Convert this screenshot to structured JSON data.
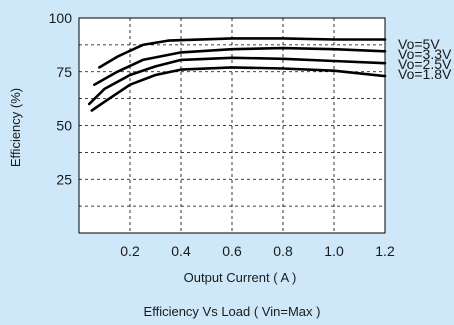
{
  "chart_data": {
    "type": "line",
    "title": "Efficiency  Vs Load ( Vin=Max )",
    "xlabel": "Output Current ( A )",
    "ylabel": "Efficiency (%)",
    "xlim": [
      0,
      1.2
    ],
    "ylim": [
      0,
      100
    ],
    "x_ticks": [
      0.2,
      0.4,
      0.6,
      0.8,
      1.0,
      1.2
    ],
    "x_tick_labels": [
      "0.2",
      "0.4",
      "0.6",
      "0.8",
      "1.0",
      "1.2"
    ],
    "y_ticks": [
      25,
      50,
      75,
      100
    ],
    "y_tick_labels": [
      "25",
      "50",
      "75",
      "100"
    ],
    "grid": true,
    "legend_position": "right",
    "line_color": "#000000",
    "background_color": "#cfe8f9",
    "plot_background_color": "#ffffff",
    "series": [
      {
        "name": "Vo=5V",
        "points": [
          [
            0.08,
            77
          ],
          [
            0.15,
            82
          ],
          [
            0.25,
            87.5
          ],
          [
            0.35,
            89.5
          ],
          [
            0.6,
            90.5
          ],
          [
            0.8,
            90.5
          ],
          [
            1.0,
            90
          ],
          [
            1.2,
            90
          ]
        ]
      },
      {
        "name": "Vo=3.3V",
        "points": [
          [
            0.06,
            69
          ],
          [
            0.15,
            75
          ],
          [
            0.25,
            80.5
          ],
          [
            0.4,
            84
          ],
          [
            0.6,
            85.5
          ],
          [
            0.8,
            86
          ],
          [
            1.0,
            85.5
          ],
          [
            1.2,
            84.5
          ]
        ]
      },
      {
        "name": "Vo=2.5V",
        "points": [
          [
            0.04,
            60
          ],
          [
            0.1,
            67
          ],
          [
            0.2,
            73.5
          ],
          [
            0.3,
            77.5
          ],
          [
            0.4,
            80.5
          ],
          [
            0.6,
            81.5
          ],
          [
            0.8,
            81
          ],
          [
            1.0,
            80
          ],
          [
            1.2,
            79
          ]
        ]
      },
      {
        "name": "Vo=1.8V",
        "points": [
          [
            0.05,
            57
          ],
          [
            0.1,
            61
          ],
          [
            0.2,
            69
          ],
          [
            0.3,
            73.5
          ],
          [
            0.4,
            76
          ],
          [
            0.6,
            77
          ],
          [
            0.8,
            76.5
          ],
          [
            1.0,
            75.5
          ],
          [
            1.2,
            73
          ]
        ]
      }
    ]
  }
}
